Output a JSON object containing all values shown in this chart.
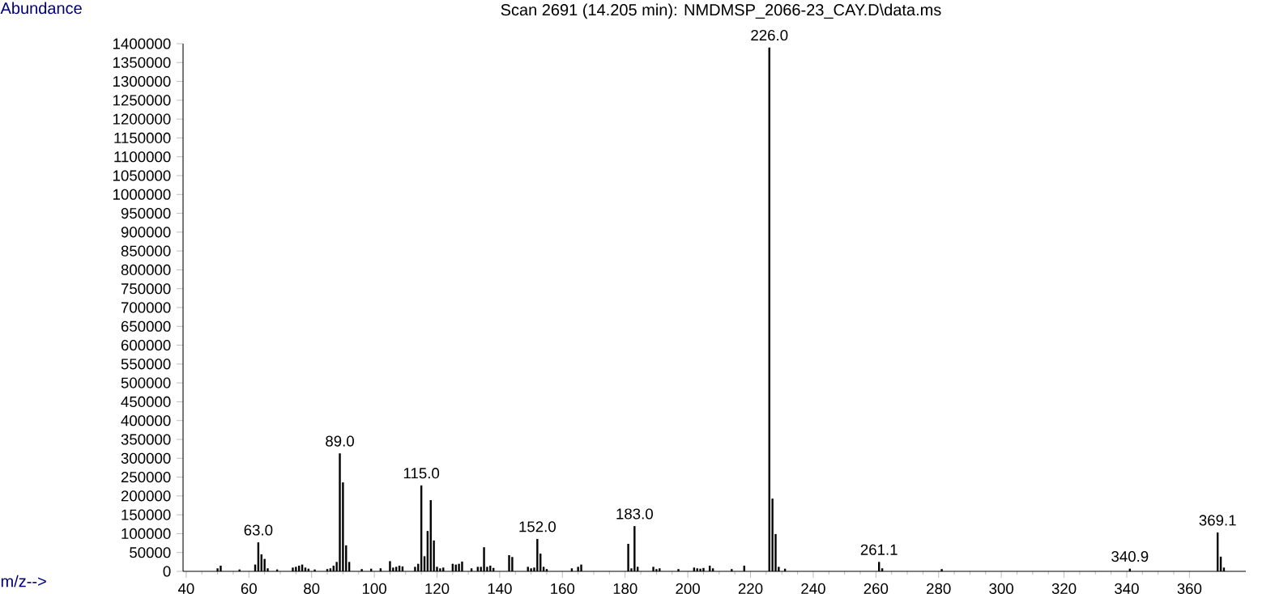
{
  "chart_data": {
    "type": "bar",
    "title": "Scan 2691 (14.205 min): NMDMSP_2066-23_CAY.D\\data.ms",
    "xlabel": "m/z-->",
    "ylabel": "Abundance",
    "color": "#000000",
    "x": [
      50,
      51,
      57,
      62,
      63,
      64,
      65,
      66,
      69,
      74,
      75,
      76,
      77,
      78,
      79,
      81,
      85,
      86,
      87,
      88,
      89,
      90,
      91,
      92,
      96,
      99,
      102,
      105,
      106,
      107,
      108,
      109,
      113,
      114,
      115,
      116,
      117,
      118,
      119,
      120,
      121,
      122,
      125,
      126,
      127,
      128,
      131,
      133,
      134,
      135,
      136,
      137,
      138,
      143,
      144,
      149,
      150,
      151,
      152,
      153,
      154,
      155,
      163,
      165,
      166,
      181,
      182,
      183,
      184,
      189,
      190,
      191,
      197,
      202,
      203,
      204,
      205,
      207,
      208,
      214,
      218,
      226,
      227,
      228,
      229,
      231,
      261,
      262,
      281,
      341,
      369,
      370,
      371
    ],
    "values": [
      8000,
      15000,
      5000,
      18000,
      77000,
      45000,
      33000,
      8000,
      5000,
      10000,
      12000,
      15000,
      18000,
      10000,
      7000,
      5000,
      6000,
      8000,
      15000,
      25000,
      313000,
      236000,
      69000,
      25000,
      6000,
      7000,
      8000,
      27000,
      10000,
      12000,
      15000,
      13000,
      12000,
      20000,
      228000,
      40000,
      107000,
      189000,
      82000,
      12000,
      8000,
      10000,
      20000,
      18000,
      20000,
      26000,
      8000,
      12000,
      12000,
      64000,
      12000,
      15000,
      9000,
      43000,
      38000,
      12000,
      8000,
      10000,
      86000,
      47000,
      12000,
      6000,
      8000,
      12000,
      18000,
      73000,
      8000,
      120000,
      12000,
      12000,
      6000,
      8000,
      6000,
      10000,
      8000,
      7000,
      9000,
      15000,
      8000,
      6000,
      15000,
      1390000,
      193000,
      99000,
      12000,
      7000,
      25000,
      8000,
      6000,
      7000,
      103000,
      39000,
      10000
    ],
    "xlim": [
      39,
      378
    ],
    "ylim": [
      0,
      1400000
    ],
    "xticks": [
      40,
      60,
      80,
      100,
      120,
      140,
      160,
      180,
      200,
      220,
      240,
      260,
      280,
      300,
      320,
      340,
      360
    ],
    "yticks": [
      0,
      50000,
      100000,
      150000,
      200000,
      250000,
      300000,
      350000,
      400000,
      450000,
      500000,
      550000,
      600000,
      650000,
      700000,
      750000,
      800000,
      850000,
      900000,
      950000,
      1000000,
      1050000,
      1100000,
      1150000,
      1200000,
      1250000,
      1300000,
      1350000,
      1400000
    ],
    "annotations": [
      {
        "text": "63.0",
        "x": 63,
        "y": 77000
      },
      {
        "text": "89.0",
        "x": 89,
        "y": 313000
      },
      {
        "text": "115.0",
        "x": 115,
        "y": 228000
      },
      {
        "text": "152.0",
        "x": 152,
        "y": 86000
      },
      {
        "text": "183.0",
        "x": 183,
        "y": 120000
      },
      {
        "text": "226.0",
        "x": 226,
        "y": 1390000
      },
      {
        "text": "261.1",
        "x": 261,
        "y": 25000
      },
      {
        "text": "340.9",
        "x": 341,
        "y": 7000
      },
      {
        "text": "369.1",
        "x": 369,
        "y": 103000
      }
    ]
  }
}
